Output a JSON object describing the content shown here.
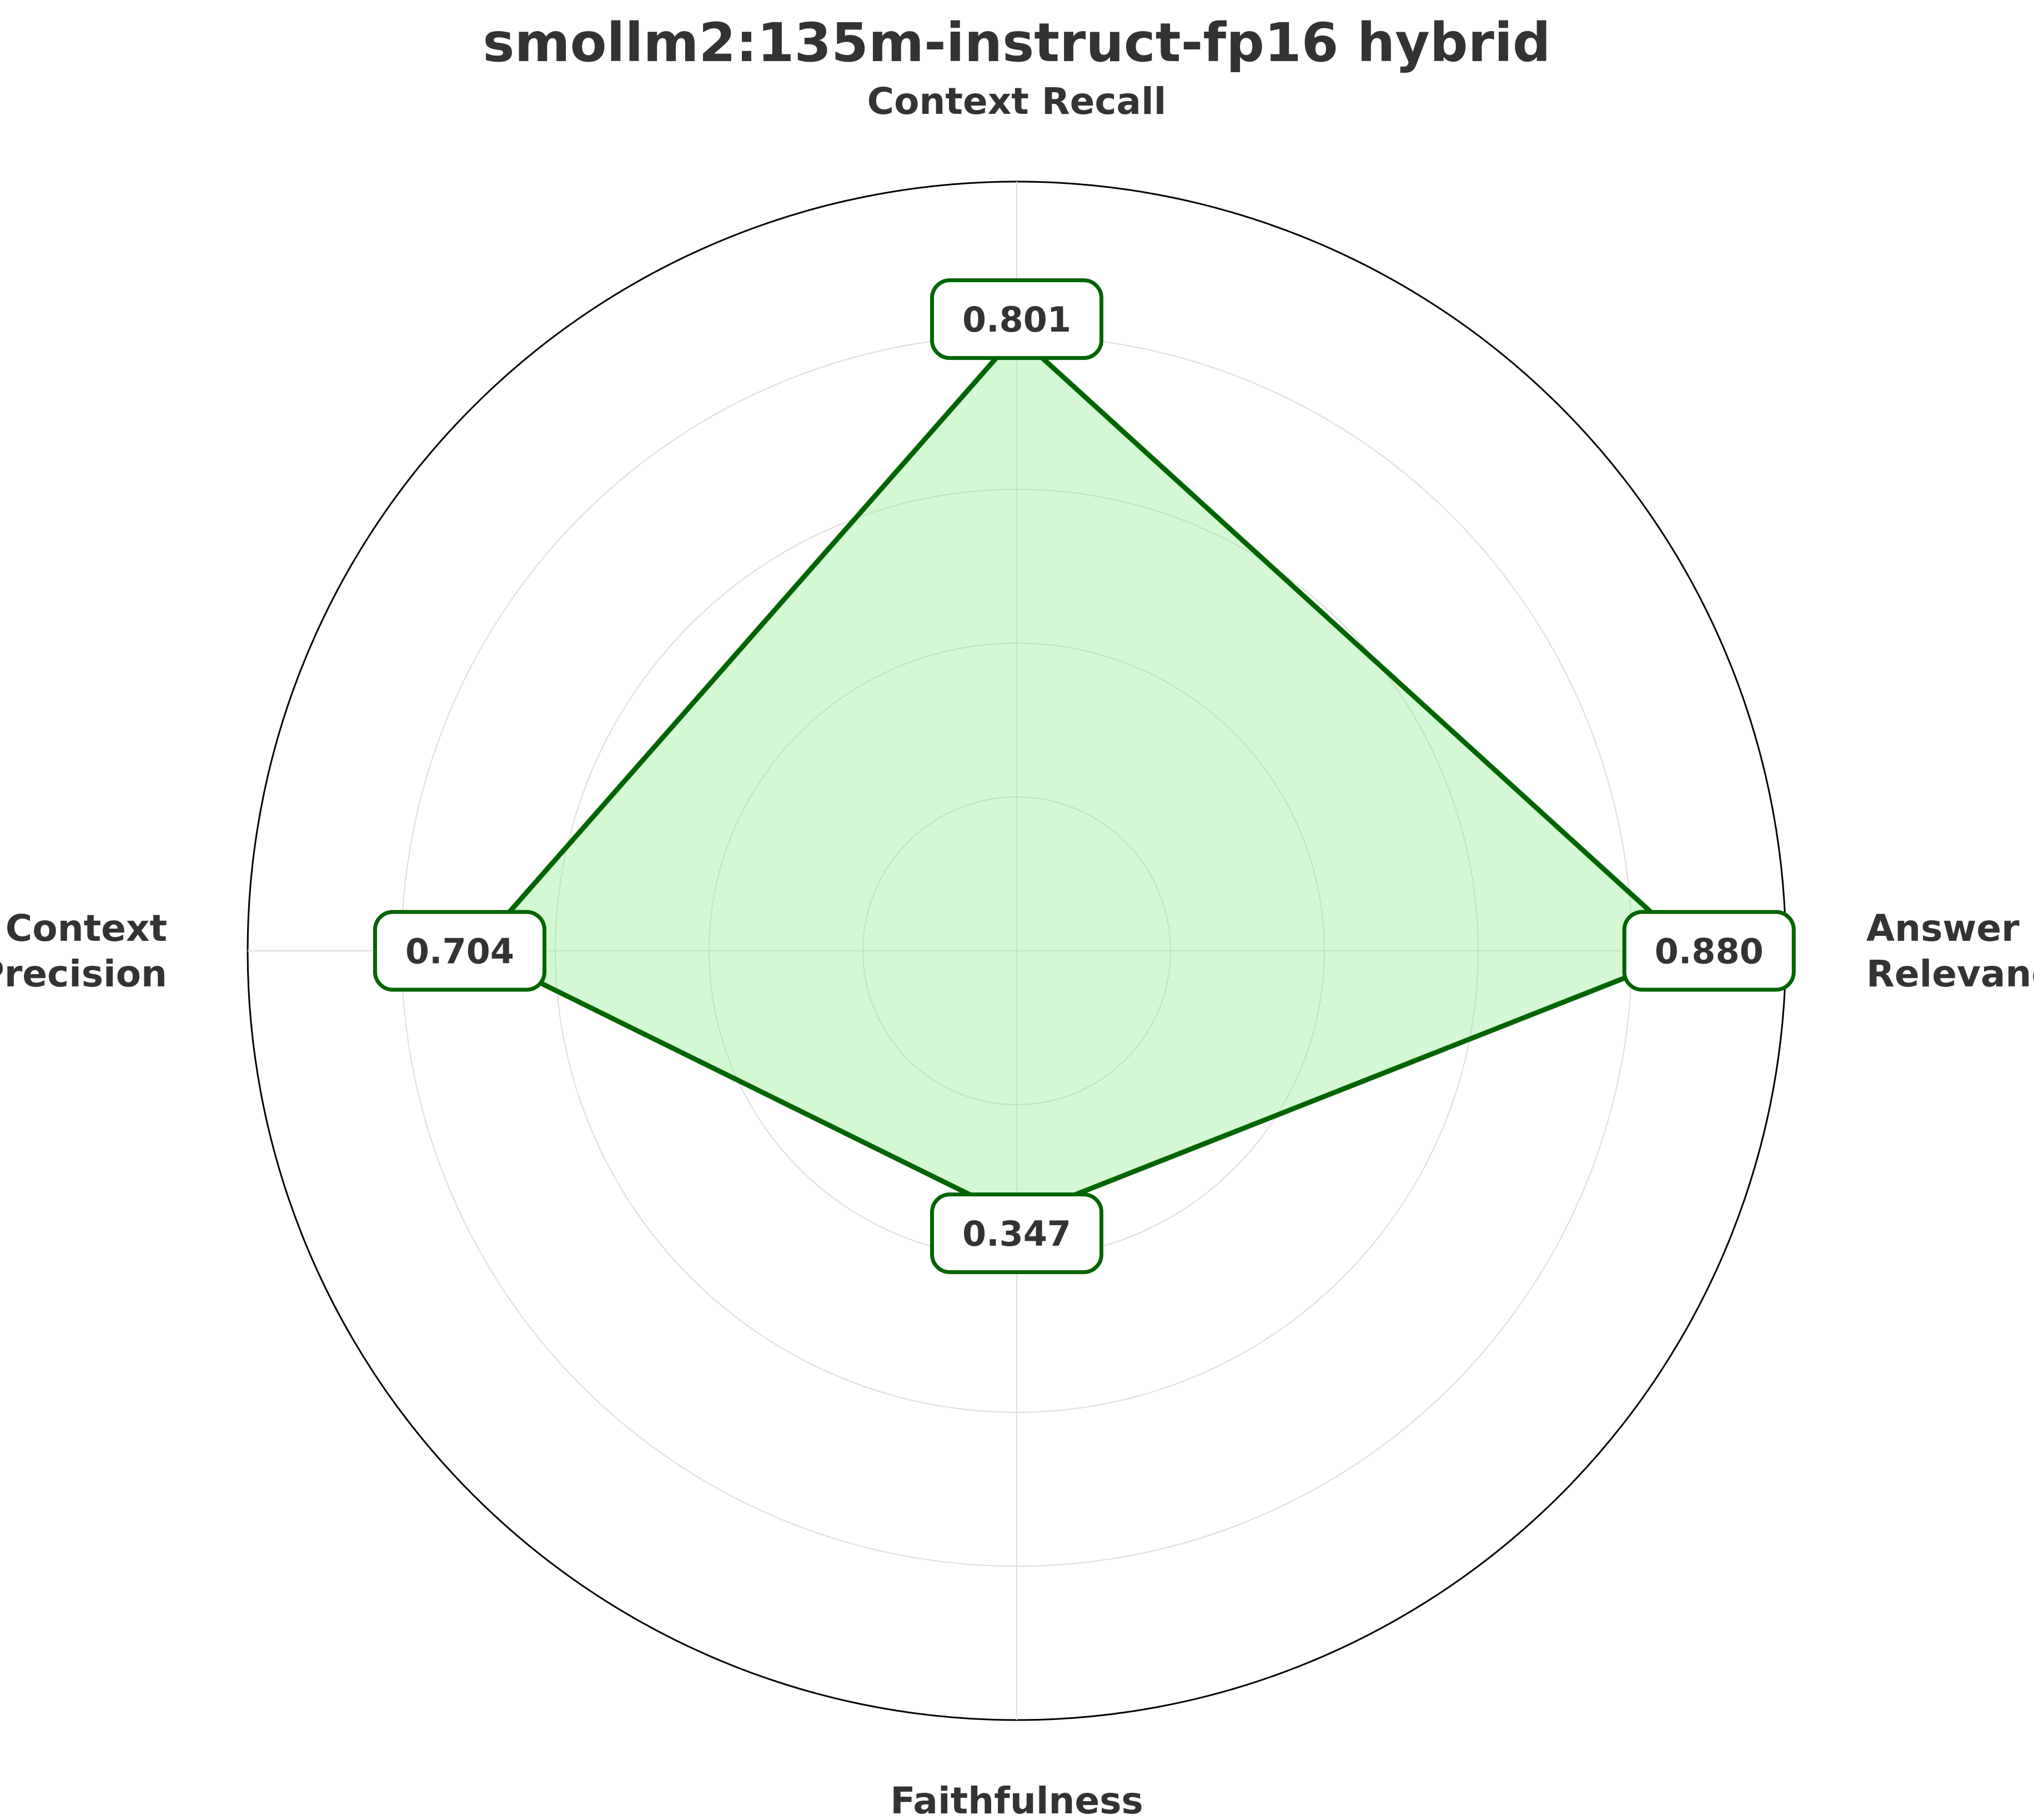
{
  "chart_data": {
    "type": "radar",
    "title": "smollm2:135m-instruct-fp16 hybrid",
    "axes": [
      "Answer\nRelevancy",
      "Context Recall",
      "Context\nPrecision",
      "Faithfulness"
    ],
    "series": [
      {
        "values": [
          0.88,
          0.801,
          0.704,
          0.347
        ]
      }
    ],
    "value_labels": [
      "0.880",
      "0.801",
      "0.704",
      "0.347"
    ],
    "rlim": [
      0,
      1
    ],
    "rings": [
      0.2,
      0.4,
      0.6,
      0.8,
      1.0
    ],
    "grid": true,
    "legend": "none",
    "colors": {
      "line": "#006400",
      "fill": "#90EE90",
      "label_border": "#006400",
      "text": "#333333",
      "grid": "#dddddd",
      "frame": "#000000"
    }
  }
}
